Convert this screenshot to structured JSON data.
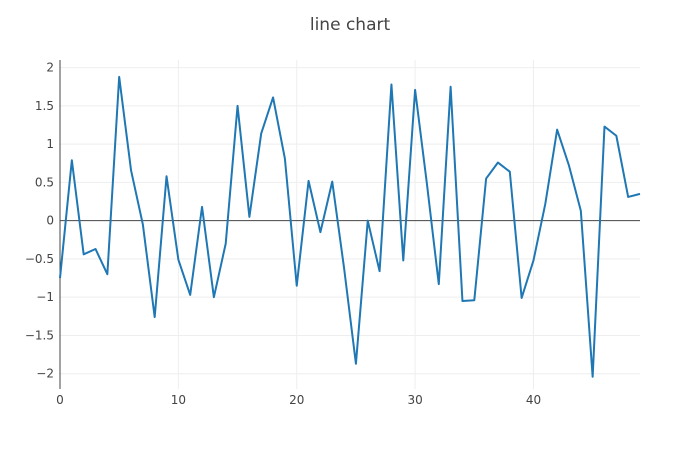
{
  "chart_data": {
    "type": "line",
    "title": "line chart",
    "xlabel": "",
    "ylabel": "",
    "xlim": [
      0,
      49
    ],
    "ylim": [
      -2.2,
      2.1
    ],
    "x_ticks": [
      0,
      10,
      20,
      30,
      40
    ],
    "y_ticks": [
      -2,
      -1.5,
      -1,
      -0.5,
      0,
      0.5,
      1,
      1.5,
      2
    ],
    "grid": true,
    "legend": "none",
    "colors": {
      "series": "#1f77b4",
      "text": "#444444",
      "grid": "#eeeeee",
      "zero_line": "#444444"
    },
    "x": [
      0,
      1,
      2,
      3,
      4,
      5,
      6,
      7,
      8,
      9,
      10,
      11,
      12,
      13,
      14,
      15,
      16,
      17,
      18,
      19,
      20,
      21,
      22,
      23,
      24,
      25,
      26,
      27,
      28,
      29,
      30,
      31,
      32,
      33,
      34,
      35,
      36,
      37,
      38,
      39,
      40,
      41,
      42,
      43,
      44,
      45,
      46,
      47,
      48,
      49
    ],
    "series": [
      {
        "values": [
          -0.75,
          0.79,
          -0.44,
          -0.37,
          -0.7,
          1.88,
          0.66,
          -0.05,
          -1.26,
          0.58,
          -0.51,
          -0.97,
          0.18,
          -1.0,
          -0.3,
          1.5,
          0.05,
          1.14,
          1.61,
          0.81,
          -0.85,
          0.52,
          -0.15,
          0.51,
          -0.62,
          -1.87,
          0.0,
          -0.66,
          1.78,
          -0.52,
          1.71,
          0.48,
          -0.83,
          1.75,
          -1.05,
          -1.04,
          0.55,
          0.76,
          0.64,
          -1.01,
          -0.52,
          0.22,
          1.19,
          0.72,
          0.13,
          -2.04,
          1.23,
          1.11,
          0.31,
          0.35
        ]
      }
    ]
  }
}
